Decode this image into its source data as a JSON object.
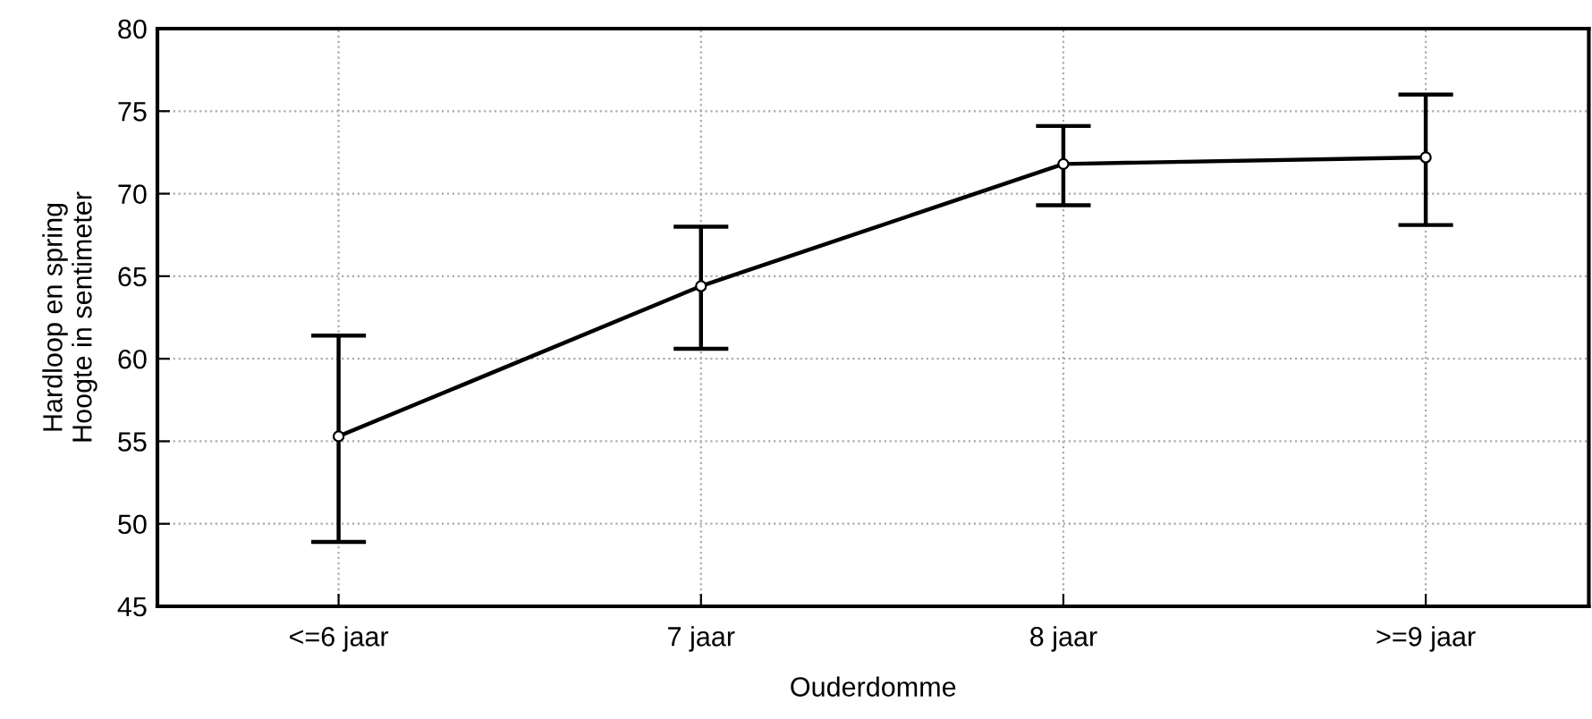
{
  "chart_data": {
    "type": "line",
    "xlabel": "Ouderdomme",
    "ylabel": "Hardloop en spring\nHoogte in sentimeter",
    "categories": [
      "<=6 jaar",
      "7 jaar",
      "8 jaar",
      ">=9 jaar"
    ],
    "values": [
      55.3,
      64.4,
      71.8,
      72.2
    ],
    "errors": [
      [
        48.9,
        61.4
      ],
      [
        60.6,
        68.0
      ],
      [
        69.3,
        74.1
      ],
      [
        68.1,
        76.0
      ]
    ],
    "color": "#000000",
    "marker": "circle",
    "line_style": "solid",
    "ylim": [
      45,
      80
    ],
    "yticks": [
      45,
      50,
      55,
      60,
      65,
      70,
      75,
      80
    ],
    "grid": true
  }
}
